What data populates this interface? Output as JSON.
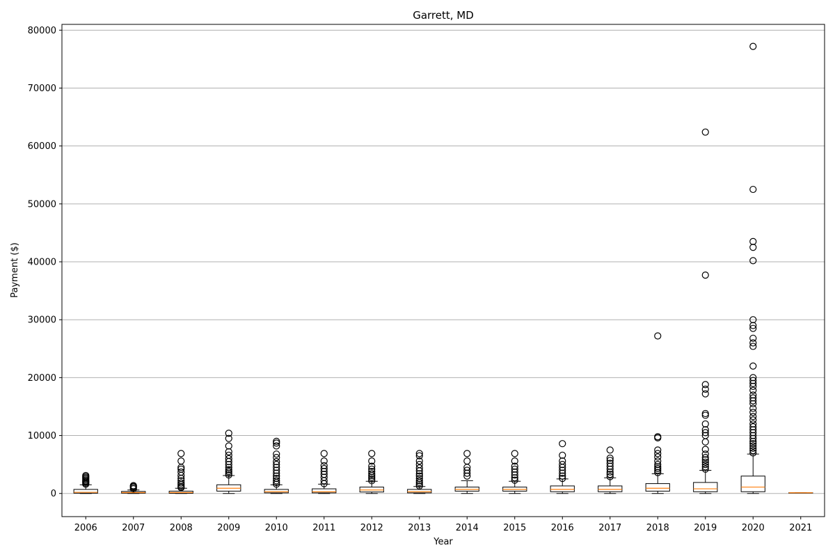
{
  "chart_data": {
    "type": "box",
    "title": "Garrett, MD",
    "xlabel": "Year",
    "ylabel": "Payment ($)",
    "ylim": [
      -4000,
      81000
    ],
    "yticks": [
      0,
      10000,
      20000,
      30000,
      40000,
      50000,
      60000,
      70000,
      80000
    ],
    "grid": "y",
    "categories": [
      "2006",
      "2007",
      "2008",
      "2009",
      "2010",
      "2011",
      "2012",
      "2013",
      "2014",
      "2015",
      "2016",
      "2017",
      "2018",
      "2019",
      "2020",
      "2021"
    ],
    "boxes": [
      {
        "category": "2006",
        "whisker_low": 0,
        "q1": 50,
        "median": 200,
        "q3": 700,
        "whisker_high": 1500,
        "outliers": [
          1600,
          1800,
          2000,
          2100,
          2300,
          2500,
          2700,
          2900,
          3100
        ]
      },
      {
        "category": "2007",
        "whisker_low": 0,
        "q1": 50,
        "median": 150,
        "q3": 350,
        "whisker_high": 600,
        "outliers": [
          800,
          1000,
          1200,
          1350
        ]
      },
      {
        "category": "2008",
        "whisker_low": 0,
        "q1": 30,
        "median": 150,
        "q3": 400,
        "whisker_high": 900,
        "outliers": [
          1000,
          1200,
          1500,
          1800,
          2200,
          2600,
          3100,
          3700,
          4200,
          4500,
          5600,
          6900
        ]
      },
      {
        "category": "2009",
        "whisker_low": 0,
        "q1": 400,
        "median": 900,
        "q3": 1500,
        "whisker_high": 3100,
        "outliers": [
          3200,
          3500,
          3800,
          4100,
          4500,
          5000,
          5500,
          6000,
          6600,
          7200,
          8200,
          9500,
          10400
        ]
      },
      {
        "category": "2010",
        "whisker_low": 0,
        "q1": 100,
        "median": 300,
        "q3": 700,
        "whisker_high": 1500,
        "outliers": [
          1600,
          1900,
          2200,
          2600,
          3000,
          3500,
          4000,
          4500,
          5000,
          5500,
          6200,
          6800,
          8200,
          8700,
          9000
        ]
      },
      {
        "category": "2011",
        "whisker_low": 0,
        "q1": 100,
        "median": 300,
        "q3": 800,
        "whisker_high": 1600,
        "outliers": [
          1700,
          2200,
          2800,
          3300,
          3800,
          4300,
          4800,
          5600,
          6900
        ]
      },
      {
        "category": "2012",
        "whisker_low": 0,
        "q1": 250,
        "median": 600,
        "q3": 1100,
        "whisker_high": 2100,
        "outliers": [
          2200,
          2500,
          2800,
          3100,
          3400,
          3800,
          4200,
          4700,
          5600,
          6900
        ]
      },
      {
        "category": "2013",
        "whisker_low": 0,
        "q1": 100,
        "median": 300,
        "q3": 700,
        "whisker_high": 1200,
        "outliers": [
          1300,
          1600,
          1900,
          2200,
          2600,
          3000,
          3400,
          3900,
          4400,
          5000,
          5600,
          6500,
          6900
        ]
      },
      {
        "category": "2014",
        "whisker_low": 0,
        "q1": 400,
        "median": 700,
        "q3": 1100,
        "whisker_high": 2200,
        "outliers": [
          3000,
          3500,
          4000,
          4500,
          5600,
          6900
        ]
      },
      {
        "category": "2015",
        "whisker_low": 0,
        "q1": 400,
        "median": 700,
        "q3": 1100,
        "whisker_high": 2100,
        "outliers": [
          2300,
          2700,
          3200,
          3700,
          4200,
          4700,
          5600,
          6900
        ]
      },
      {
        "category": "2016",
        "whisker_low": 0,
        "q1": 300,
        "median": 700,
        "q3": 1300,
        "whisker_high": 2500,
        "outliers": [
          2600,
          3000,
          3500,
          4000,
          4500,
          5000,
          5600,
          6600,
          8600
        ]
      },
      {
        "category": "2017",
        "whisker_low": 0,
        "q1": 300,
        "median": 700,
        "q3": 1300,
        "whisker_high": 2700,
        "outliers": [
          2900,
          3300,
          3700,
          4200,
          4700,
          5200,
          5700,
          6100,
          7500
        ]
      },
      {
        "category": "2018",
        "whisker_low": 0,
        "q1": 400,
        "median": 900,
        "q3": 1700,
        "whisker_high": 3400,
        "outliers": [
          3600,
          4000,
          4300,
          4600,
          5000,
          5600,
          6300,
          6900,
          7500,
          9600,
          9800,
          27200
        ]
      },
      {
        "category": "2019",
        "whisker_low": 0,
        "q1": 300,
        "median": 800,
        "q3": 1900,
        "whisker_high": 4000,
        "outliers": [
          4200,
          4600,
          5000,
          5400,
          5800,
          6200,
          6800,
          7600,
          8900,
          10000,
          10500,
          11000,
          12000,
          13500,
          13800,
          17200,
          18000,
          18800,
          37700,
          62400
        ]
      },
      {
        "category": "2020",
        "whisker_low": 0,
        "q1": 300,
        "median": 1100,
        "q3": 3000,
        "whisker_high": 6800,
        "outliers": [
          7000,
          7400,
          7800,
          8200,
          8600,
          9000,
          9500,
          10000,
          10500,
          11000,
          11500,
          12000,
          12700,
          13300,
          14000,
          14700,
          15500,
          16000,
          16500,
          17000,
          17800,
          18500,
          19000,
          19500,
          20000,
          22000,
          25400,
          26000,
          26800,
          28500,
          29000,
          30000,
          40200,
          42500,
          43500,
          52500,
          77200
        ]
      },
      {
        "category": "2021",
        "whisker_low": 120,
        "q1": 120,
        "median": 120,
        "q3": 120,
        "whisker_high": 120,
        "outliers": []
      }
    ]
  },
  "colors": {
    "box_edge": "#000000",
    "median_line": "#ff7f0e",
    "grid": "#b0b0b0",
    "outlier_edge": "#000000"
  }
}
